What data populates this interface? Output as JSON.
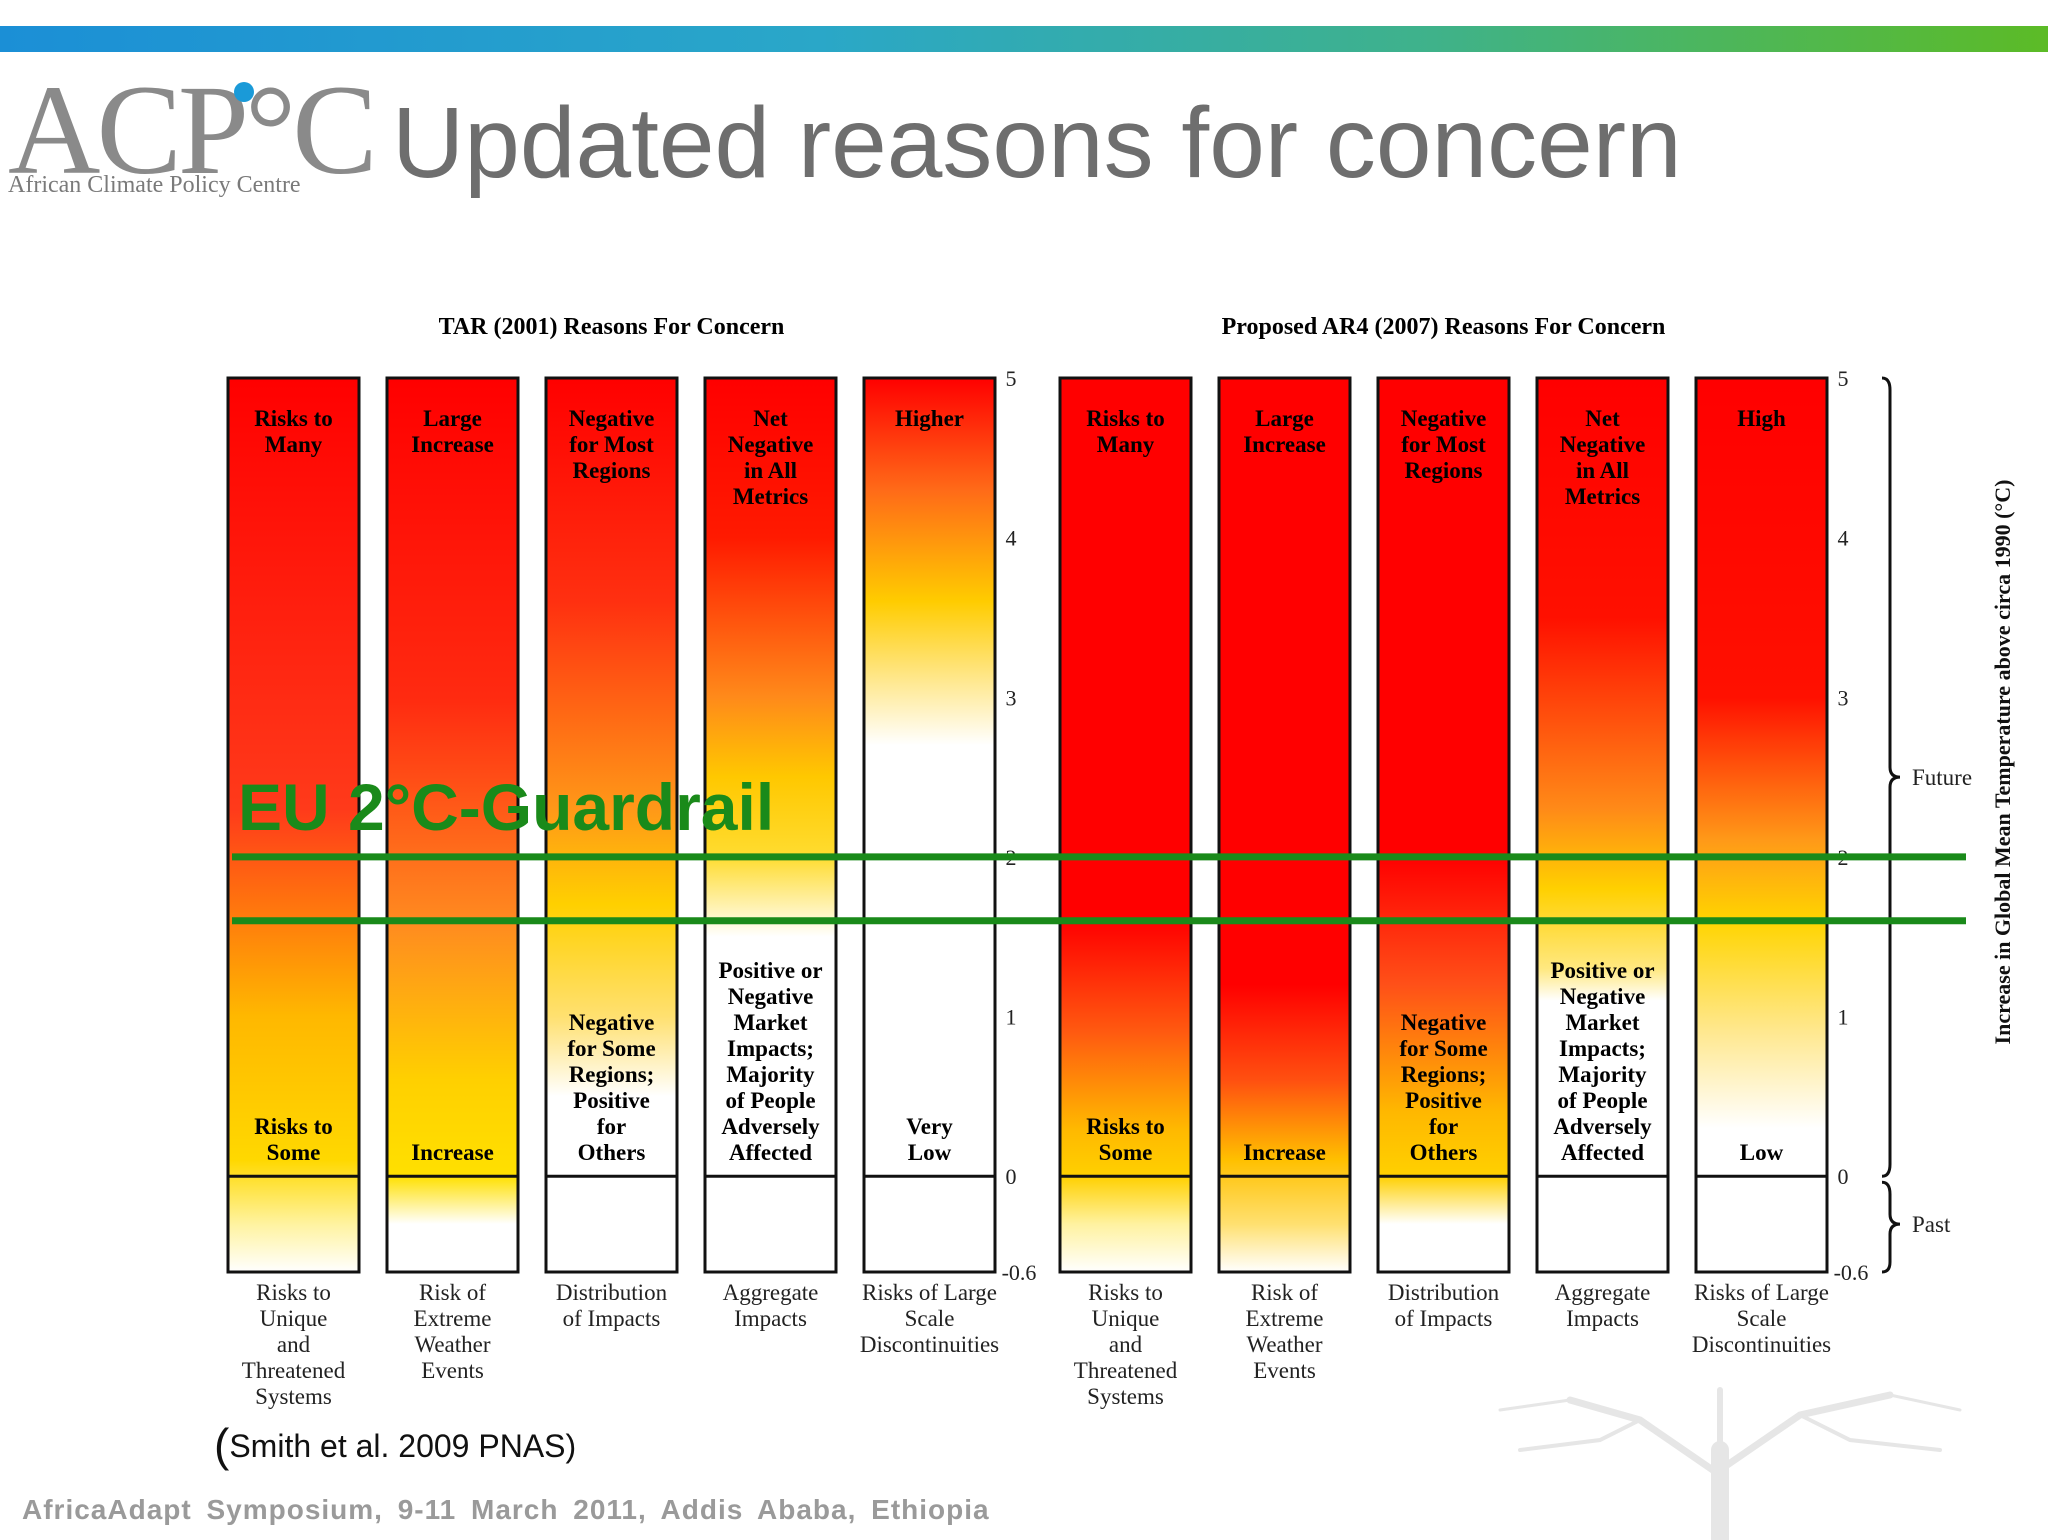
{
  "slide": {
    "title": "Updated reasons for concern",
    "logo_letters": "ACP°C",
    "logo_subtitle": "African Climate Policy Centre",
    "citation": "Smith et al. 2009 PNAS)",
    "citation_paren": "(",
    "footer": "AfricaAdapt Symposium, 9-11 March 2011, Addis Ababa, Ethiopia"
  },
  "colors": {
    "risk_high": "#ff0000",
    "risk_mid": "#ffd200",
    "risk_none": "#ffffff",
    "guardrail": "#1a8a1a",
    "accent_blue": "#1a9ad8"
  },
  "chart_data": {
    "type": "bar",
    "annotation": "EU 2°C-Guardrail",
    "guardrail_lines": [
      2.0,
      1.6
    ],
    "y_label": "Increase in Global Mean Temperature above circa 1990 (°C)",
    "ylim": [
      -0.6,
      5
    ],
    "ticks": [
      "5",
      "4",
      "3",
      "2",
      "1",
      "0",
      "-0.6"
    ],
    "tick_values": [
      5,
      4,
      3,
      2,
      1,
      0,
      -0.6
    ],
    "bracket_labels": {
      "future": "Future",
      "past": "Past"
    },
    "panels": [
      {
        "title": "TAR (2001) Reasons For Concern",
        "bars": [
          {
            "category": [
              "Risks to",
              "Unique",
              "and",
              "Threatened",
              "Systems"
            ],
            "top_label": [
              "Risks to",
              "Many"
            ],
            "bottom_label": [
              "Risks to",
              "Some"
            ],
            "stops": [
              [
                5,
                "#ff0000"
              ],
              [
                2.3,
                "#ff3a1a"
              ],
              [
                1.0,
                "#ffb800"
              ],
              [
                0.1,
                "#ffd800"
              ],
              [
                -0.3,
                "#fff3a0"
              ],
              [
                -0.6,
                "#ffffff"
              ]
            ]
          },
          {
            "category": [
              "Risk of",
              "Extreme",
              "Weather",
              "Events"
            ],
            "top_label": [
              "Large",
              "Increase"
            ],
            "bottom_label": [
              "Increase"
            ],
            "stops": [
              [
                5,
                "#ff0000"
              ],
              [
                3.0,
                "#ff2a10"
              ],
              [
                1.6,
                "#ff8a20"
              ],
              [
                0.6,
                "#ffd000"
              ],
              [
                0.0,
                "#ffe000"
              ],
              [
                -0.3,
                "#ffffff"
              ],
              [
                -0.6,
                "#ffffff"
              ]
            ]
          },
          {
            "category": [
              "Distribution",
              "of Impacts"
            ],
            "top_label": [
              "Negative",
              "for Most",
              "Regions"
            ],
            "bottom_label": [
              "Negative",
              "for Some",
              "Regions;",
              "Positive",
              "for",
              "Others"
            ],
            "stops": [
              [
                5,
                "#ff0000"
              ],
              [
                3.6,
                "#ff3010"
              ],
              [
                2.3,
                "#ff9818"
              ],
              [
                1.7,
                "#ffd000"
              ],
              [
                1.0,
                "#ffe070"
              ],
              [
                0.5,
                "#ffffff"
              ],
              [
                -0.6,
                "#ffffff"
              ]
            ]
          },
          {
            "category": [
              "Aggregate",
              "Impacts"
            ],
            "top_label": [
              "Net",
              "Negative",
              "in All",
              "Metrics"
            ],
            "bottom_label": [
              "Positive or",
              "Negative",
              "Market",
              "Impacts;",
              "Majority",
              "of People",
              "Adversely",
              "Affected"
            ],
            "stops": [
              [
                5,
                "#ff0000"
              ],
              [
                4.0,
                "#ff1a00"
              ],
              [
                3.0,
                "#ff8a1a"
              ],
              [
                2.5,
                "#ffc800"
              ],
              [
                2.0,
                "#ffdc30"
              ],
              [
                1.5,
                "#ffffff"
              ],
              [
                -0.6,
                "#ffffff"
              ]
            ]
          },
          {
            "category": [
              "Risks of Large",
              "Scale",
              "Discontinuities"
            ],
            "top_label": [
              "Higher"
            ],
            "bottom_label": [
              "Very",
              "Low"
            ],
            "stops": [
              [
                5,
                "#ff0000"
              ],
              [
                4.3,
                "#ff6a18"
              ],
              [
                3.6,
                "#ffcc00"
              ],
              [
                3.1,
                "#ffe890"
              ],
              [
                2.7,
                "#ffffff"
              ],
              [
                -0.6,
                "#ffffff"
              ]
            ]
          }
        ]
      },
      {
        "title": "Proposed AR4 (2007) Reasons For Concern",
        "bars": [
          {
            "category": [
              "Risks to",
              "Unique",
              "and",
              "Threatened",
              "Systems"
            ],
            "top_label": [
              "Risks to",
              "Many"
            ],
            "bottom_label": [
              "Risks to",
              "Some"
            ],
            "stops": [
              [
                5,
                "#ff0000"
              ],
              [
                1.6,
                "#ff0000"
              ],
              [
                0.9,
                "#ff5a10"
              ],
              [
                0.3,
                "#ffb800"
              ],
              [
                0.0,
                "#ffd000"
              ],
              [
                -0.3,
                "#fff2a0"
              ],
              [
                -0.6,
                "#ffffff"
              ]
            ]
          },
          {
            "category": [
              "Risk of",
              "Extreme",
              "Weather",
              "Events"
            ],
            "top_label": [
              "Large",
              "Increase"
            ],
            "bottom_label": [
              "Increase"
            ],
            "stops": [
              [
                5,
                "#ff0000"
              ],
              [
                1.2,
                "#ff0000"
              ],
              [
                0.6,
                "#ff5010"
              ],
              [
                0.1,
                "#ffc000"
              ],
              [
                -0.3,
                "#ffe070"
              ],
              [
                -0.6,
                "#ffffff"
              ]
            ]
          },
          {
            "category": [
              "Distribution",
              "of Impacts"
            ],
            "top_label": [
              "Negative",
              "for Most",
              "Regions"
            ],
            "bottom_label": [
              "Negative",
              "for Some",
              "Regions;",
              "Positive",
              "for",
              "Others"
            ],
            "stops": [
              [
                5,
                "#ff0000"
              ],
              [
                2.0,
                "#ff0000"
              ],
              [
                1.2,
                "#ff5018"
              ],
              [
                0.4,
                "#ffb800"
              ],
              [
                0.0,
                "#ffd000"
              ],
              [
                -0.3,
                "#ffffff"
              ],
              [
                -0.6,
                "#ffffff"
              ]
            ]
          },
          {
            "category": [
              "Aggregate",
              "Impacts"
            ],
            "top_label": [
              "Net",
              "Negative",
              "in All",
              "Metrics"
            ],
            "bottom_label": [
              "Positive or",
              "Negative",
              "Market",
              "Impacts;",
              "Majority",
              "of People",
              "Adversely",
              "Affected"
            ],
            "stops": [
              [
                5,
                "#ff0000"
              ],
              [
                3.5,
                "#ff1000"
              ],
              [
                2.3,
                "#ff8a18"
              ],
              [
                1.8,
                "#ffd000"
              ],
              [
                1.3,
                "#ffe880"
              ],
              [
                1.1,
                "#ffffff"
              ],
              [
                -0.6,
                "#ffffff"
              ]
            ]
          },
          {
            "category": [
              "Risks of Large",
              "Scale",
              "Discontinuities"
            ],
            "top_label": [
              "High"
            ],
            "bottom_label": [
              "Low"
            ],
            "stops": [
              [
                5,
                "#ff0000"
              ],
              [
                3.0,
                "#ff1000"
              ],
              [
                2.1,
                "#ff9a18"
              ],
              [
                1.6,
                "#ffd400"
              ],
              [
                0.9,
                "#ffe890"
              ],
              [
                0.3,
                "#ffffff"
              ],
              [
                -0.6,
                "#ffffff"
              ]
            ]
          }
        ]
      }
    ]
  }
}
